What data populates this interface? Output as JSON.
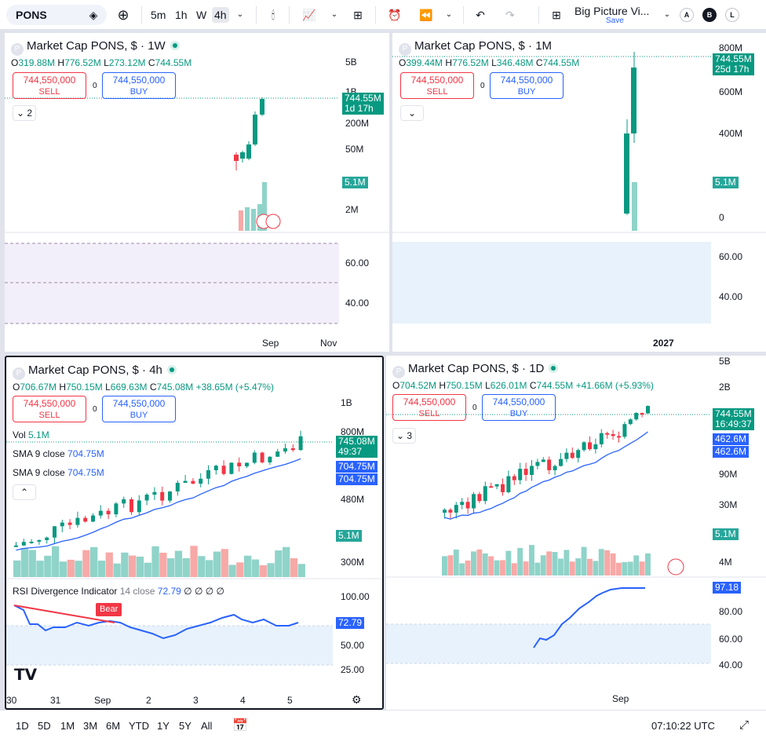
{
  "toolbar": {
    "symbol": "PONS",
    "timeframes": [
      "5m",
      "1h",
      "W",
      "4h"
    ],
    "active_tf": "4h",
    "layout_name": "Big Picture Vi...",
    "save_label": "Save",
    "btn_a": "A",
    "btn_b": "B",
    "btn_l": "L"
  },
  "panels": [
    {
      "title": "Market Cap PONS, $ · 1W",
      "o": "319.88M",
      "h": "776.52M",
      "l": "273.12M",
      "c": "744.55M",
      "sell": "744,550,000",
      "sell_label": "SELL",
      "buy": "744,550,000",
      "buy_label": "BUY",
      "spread": "0",
      "collapse": "2",
      "price_tag": "744.55M",
      "price_tag2": "1d 17h",
      "vol_tag": "5.1M",
      "yticks": [
        "5B",
        "1B",
        "200M",
        "50M",
        "2M"
      ],
      "rsi_ticks": [
        "60.00",
        "40.00"
      ],
      "xticks": [
        "Sep",
        "Nov"
      ]
    },
    {
      "title": "Market Cap PONS, $ · 1M",
      "o": "399.44M",
      "h": "776.52M",
      "l": "346.48M",
      "c": "744.55M",
      "sell": "744,550,000",
      "sell_label": "SELL",
      "buy": "744,550,000",
      "buy_label": "BUY",
      "spread": "0",
      "price_tag": "744.55M",
      "price_tag2": "25d 17h",
      "vol_tag": "5.1M",
      "yticks": [
        "800M",
        "600M",
        "400M",
        "0"
      ],
      "rsi_ticks": [
        "60.00",
        "40.00"
      ],
      "xticks": [
        "2027"
      ]
    },
    {
      "title": "Market Cap PONS, $ · 4h",
      "o": "706.67M",
      "h": "750.15M",
      "l": "669.63M",
      "c": "745.08M",
      "chg": "+38.65M (+5.47%)",
      "sell": "744,550,000",
      "sell_label": "SELL",
      "buy": "744,550,000",
      "buy_label": "BUY",
      "spread": "0",
      "vol_label": "Vol",
      "vol_val": "5.1M",
      "sma1": "SMA 9 close",
      "sma1_val": "704.75M",
      "sma2": "SMA 9 close",
      "sma2_val": "704.75M",
      "price_tag": "745.08M",
      "price_tag2": "49:37",
      "sma_tag1": "704.75M",
      "sma_tag2": "704.75M",
      "vol_tag": "5.1M",
      "yticks": [
        "1B",
        "800M",
        "480M",
        "300M"
      ],
      "rsi_label": "RSI Divergence Indicator",
      "rsi_params": "14 close",
      "rsi_val": "72.79",
      "rsi_extra": "∅ ∅ ∅ ∅",
      "rsi_tag": "72.79",
      "bear": "Bear",
      "rsi_ticks": [
        "100.00",
        "50.00",
        "25.00"
      ],
      "xticks": [
        "30",
        "31",
        "Sep",
        "2",
        "3",
        "4",
        "5"
      ]
    },
    {
      "title": "Market Cap PONS, $ · 1D",
      "o": "704.52M",
      "h": "750.15M",
      "l": "626.01M",
      "c": "744.55M",
      "chg": "+41.66M (+5.93%)",
      "sell": "744,550,000",
      "sell_label": "SELL",
      "buy": "744,550,000",
      "buy_label": "BUY",
      "spread": "0",
      "collapse": "3",
      "price_tag": "744.55M",
      "price_tag2": "16:49:37",
      "sma_tag1": "462.6M",
      "sma_tag2": "462.6M",
      "vol_tag": "5.1M",
      "yticks": [
        "5B",
        "2B",
        "90M",
        "30M",
        "4M"
      ],
      "rsi_tag": "97.18",
      "rsi_ticks": [
        "80.00",
        "60.00",
        "40.00"
      ],
      "xticks": [
        "Sep"
      ]
    }
  ],
  "bottom": {
    "ranges": [
      "1D",
      "5D",
      "1M",
      "3M",
      "6M",
      "YTD",
      "1Y",
      "5Y",
      "All"
    ],
    "time": "07:10:22 UTC"
  },
  "colors": {
    "up": "#089981",
    "down": "#f23645",
    "sma": "#2962ff"
  }
}
